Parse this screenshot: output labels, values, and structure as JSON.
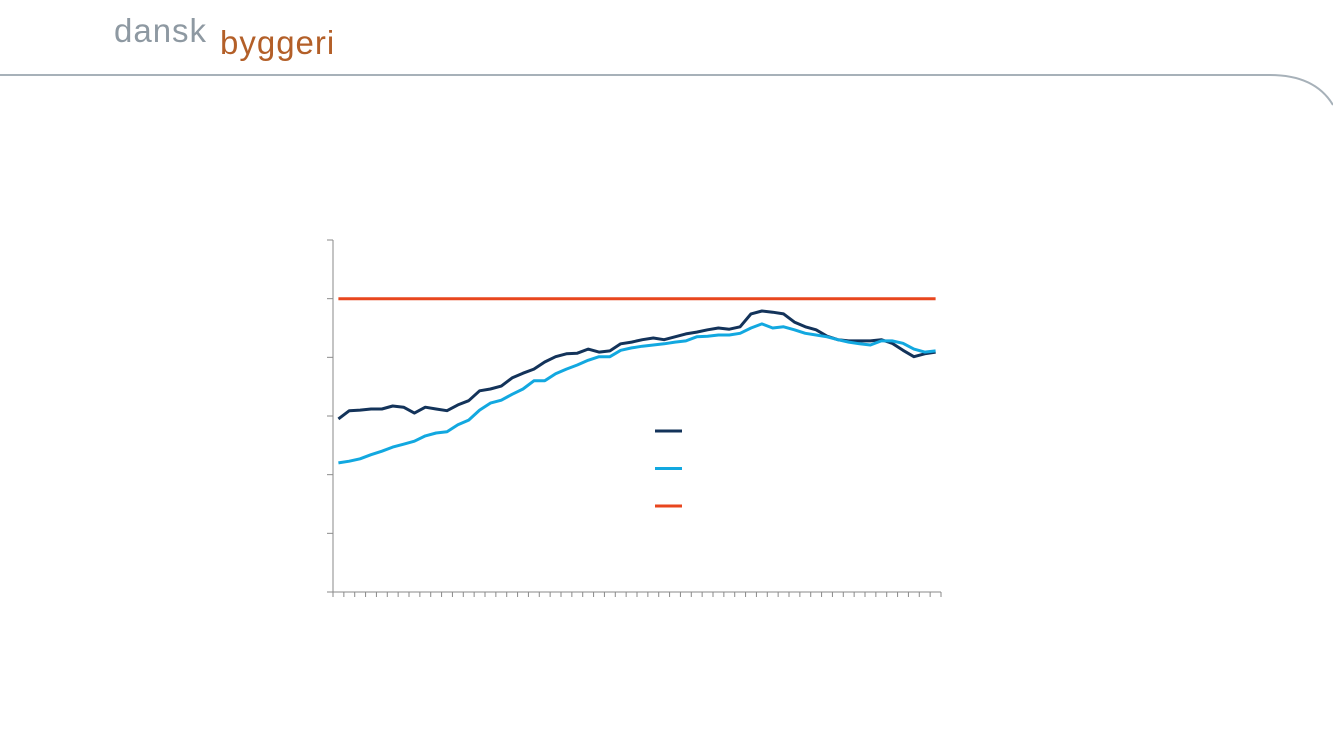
{
  "logo": {
    "first": "dansk",
    "second": "byggeri"
  },
  "chart_data": {
    "type": "line",
    "categories": [
      null,
      null,
      null,
      null,
      null,
      null,
      null,
      null,
      null,
      null,
      null,
      null,
      null,
      null,
      null,
      null,
      null,
      null,
      null,
      null,
      null,
      null,
      null,
      null,
      null,
      null,
      null,
      null,
      null,
      null,
      null,
      null,
      null,
      null,
      null,
      null,
      null,
      null,
      null,
      null,
      null,
      null,
      null,
      null,
      null,
      null,
      null,
      null,
      null,
      null,
      null,
      null,
      null,
      null,
      null,
      null
    ],
    "series": [
      {
        "color": "#13335a",
        "values": [
          2.95,
          3.09,
          3.1,
          3.12,
          3.12,
          3.17,
          3.15,
          3.05,
          3.15,
          3.12,
          3.09,
          3.19,
          3.26,
          3.43,
          3.46,
          3.51,
          3.65,
          3.73,
          3.8,
          3.92,
          4.01,
          4.06,
          4.07,
          4.14,
          4.09,
          4.11,
          4.23,
          4.26,
          4.3,
          4.33,
          4.3,
          4.35,
          4.4,
          4.43,
          4.47,
          4.5,
          4.48,
          4.52,
          4.74,
          4.79,
          4.77,
          4.74,
          4.6,
          4.52,
          4.47,
          4.36,
          4.3,
          4.28,
          4.28,
          4.28,
          4.3,
          4.24,
          4.12,
          4.01,
          4.06,
          4.09
        ]
      },
      {
        "color": "#12a8e0",
        "values": [
          2.2,
          2.23,
          2.27,
          2.34,
          2.4,
          2.47,
          2.52,
          2.57,
          2.66,
          2.71,
          2.73,
          2.85,
          2.93,
          3.1,
          3.22,
          3.27,
          3.37,
          3.46,
          3.6,
          3.6,
          3.72,
          3.8,
          3.87,
          3.95,
          4.01,
          4.01,
          4.12,
          4.16,
          4.19,
          4.21,
          4.23,
          4.26,
          4.28,
          4.35,
          4.36,
          4.38,
          4.38,
          4.41,
          4.5,
          4.57,
          4.5,
          4.52,
          4.47,
          4.41,
          4.38,
          4.35,
          4.3,
          4.26,
          4.23,
          4.21,
          4.28,
          4.28,
          4.24,
          4.14,
          4.09,
          4.11
        ]
      },
      {
        "color": "#e8461e",
        "values": [
          5,
          5,
          5,
          5,
          5,
          5,
          5,
          5,
          5,
          5,
          5,
          5,
          5,
          5,
          5,
          5,
          5,
          5,
          5,
          5,
          5,
          5,
          5,
          5,
          5,
          5,
          5,
          5,
          5,
          5,
          5,
          5,
          5,
          5,
          5,
          5,
          5,
          5,
          5,
          5,
          5,
          5,
          5,
          5,
          5,
          5,
          5,
          5,
          5,
          5,
          5,
          5,
          5,
          5,
          5,
          5
        ]
      }
    ],
    "ylim": [
      0,
      6
    ],
    "yticks": [
      0,
      1,
      2,
      3,
      4,
      5,
      6
    ],
    "grid": false,
    "legend": "center"
  }
}
